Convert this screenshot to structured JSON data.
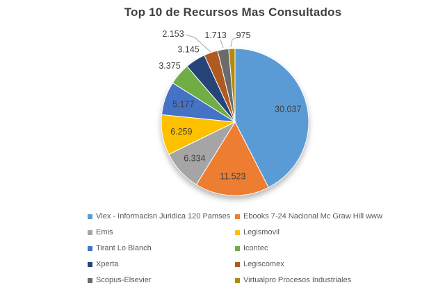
{
  "chart_data": {
    "type": "pie",
    "title": "Top 10 de Recursos Mas Consultados",
    "direction": "clockwise",
    "start_angle_deg": 0,
    "total": 70691,
    "legend": {
      "position": "bottom",
      "columns": 2
    },
    "series": [
      {
        "name": "Vlex - Informacisn Juridica 120 Pamses",
        "value": 30037,
        "label": "30.037",
        "color": "#5B9BD5",
        "label_placement": "inside"
      },
      {
        "name": "Ebooks 7-24 Nacional Mc Graw Hill www",
        "value": 11523,
        "label": "11.523",
        "color": "#ED7D31",
        "label_placement": "inside"
      },
      {
        "name": "Emis",
        "value": 6334,
        "label": "6.334",
        "color": "#A5A5A5",
        "label_placement": "inside"
      },
      {
        "name": "Legismovil",
        "value": 6259,
        "label": "6.259",
        "color": "#FFC000",
        "label_placement": "inside"
      },
      {
        "name": "Tirant Lo Blanch",
        "value": 5177,
        "label": "5.177",
        "color": "#4472C4",
        "label_placement": "inside"
      },
      {
        "name": "Icontec",
        "value": 3375,
        "label": "3.375",
        "color": "#70AD47",
        "label_placement": "outside"
      },
      {
        "name": "Xperta",
        "value": 3145,
        "label": "3.145",
        "color": "#264478",
        "label_placement": "outside"
      },
      {
        "name": "Legiscomex",
        "value": 2153,
        "label": "2.153",
        "color": "#AE5A21",
        "label_placement": "outside-leader"
      },
      {
        "name": "Scopus-Elsevier",
        "value": 1713,
        "label": "1.713",
        "color": "#6B6B6B",
        "label_placement": "outside-leader"
      },
      {
        "name": "Virtualpro Procesos Industriales",
        "value": 975,
        "label": "975",
        "color": "#B18B0E",
        "label_placement": "outside-leader"
      }
    ]
  }
}
